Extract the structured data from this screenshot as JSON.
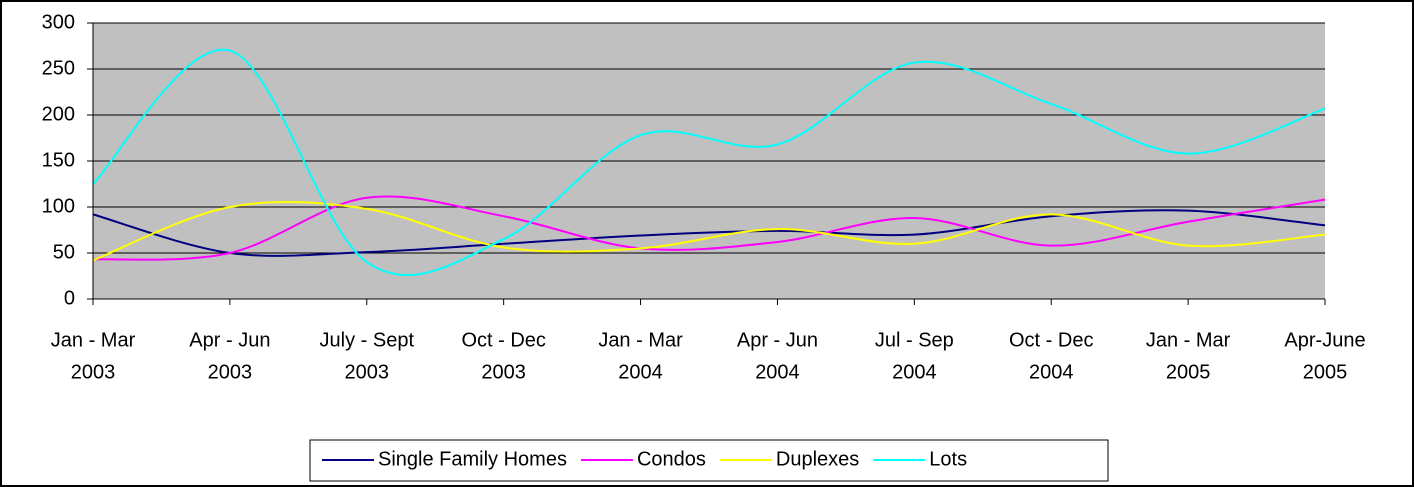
{
  "chart_data": {
    "type": "line",
    "categories": [
      [
        "Jan - Mar",
        "2003"
      ],
      [
        "Apr - Jun",
        "2003"
      ],
      [
        "July - Sept",
        "2003"
      ],
      [
        "Oct - Dec",
        "2003"
      ],
      [
        "Jan - Mar",
        "2004"
      ],
      [
        "Apr - Jun",
        "2004"
      ],
      [
        "Jul - Sep",
        "2004"
      ],
      [
        "Oct - Dec",
        "2004"
      ],
      [
        "Jan - Mar",
        "2005"
      ],
      [
        "Apr-June",
        "2005"
      ]
    ],
    "series": [
      {
        "name": "Single Family Homes",
        "color": "#000080",
        "values": [
          92,
          50,
          51,
          60,
          69,
          74,
          70,
          90,
          96,
          80
        ]
      },
      {
        "name": "Condos",
        "color": "#ff00ff",
        "values": [
          43,
          50,
          110,
          90,
          55,
          62,
          88,
          58,
          84,
          108
        ]
      },
      {
        "name": "Duplexes",
        "color": "#ffff00",
        "values": [
          42,
          100,
          98,
          56,
          55,
          76,
          60,
          92,
          58,
          70
        ]
      },
      {
        "name": "Lots",
        "color": "#00ffff",
        "values": [
          125,
          270,
          40,
          65,
          178,
          168,
          257,
          212,
          158,
          207
        ]
      }
    ],
    "ylim": [
      0,
      300
    ],
    "yticks": [
      0,
      50,
      100,
      150,
      200,
      250,
      300
    ],
    "grid": true,
    "smooth": true,
    "legend": "bottom"
  }
}
